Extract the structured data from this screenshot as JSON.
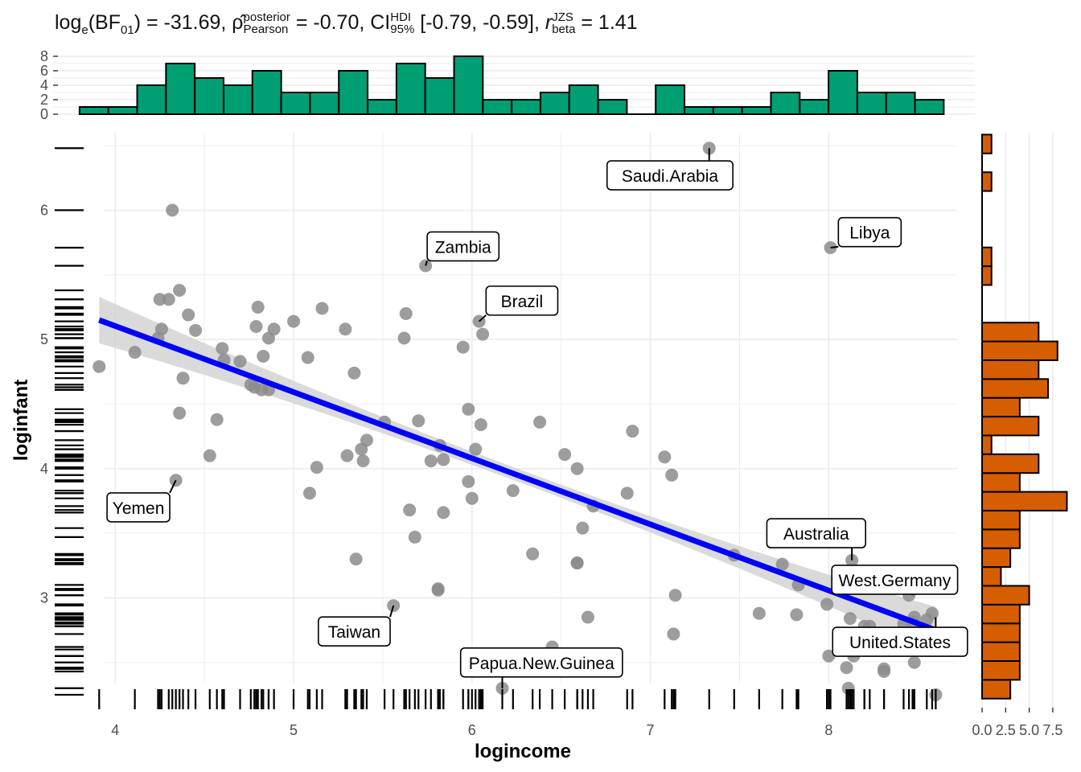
{
  "subtitle": {
    "bf_prefix": "log",
    "bf_sub_e": "e",
    "bf_arg_open": "(BF",
    "bf_arg_sub": "01",
    "bf_arg_close": ")",
    "bf_value": " = -31.69, ",
    "rho_symbol": "ρ̂",
    "rho_sup": "posterior",
    "rho_sub": "Pearson",
    "rho_value": " = -0.70, CI",
    "ci_sup": "HDI",
    "ci_sub": "95%",
    "ci_value": " [-0.79, -0.59], ",
    "r_symbol": "r",
    "r_sup": "JZS",
    "r_sub": "beta",
    "r_value": " = 1.41"
  },
  "colors": {
    "top_hist_fill": "#009E73",
    "right_hist_fill": "#D55E00",
    "regression_line": "#0000FF",
    "ribbon": "#D3D3D3",
    "points": "#8C8C8C",
    "grid": "#EBEBEB"
  },
  "chart_data": {
    "type": "scatter",
    "xlabel": "logincome",
    "ylabel": "loginfant",
    "xlim": [
      3.85,
      8.72
    ],
    "ylim": [
      2.15,
      6.6
    ],
    "x_ticks": [
      4,
      5,
      6,
      7,
      8
    ],
    "y_ticks": [
      3,
      4,
      5,
      6
    ],
    "grid": true,
    "regression": {
      "x0": 3.91,
      "y0": 5.15,
      "x1": 8.6,
      "y1": 2.75,
      "ribbon_half_width_ends": 0.18,
      "ribbon_half_width_center": 0.05
    },
    "points": [
      [
        3.91,
        4.79
      ],
      [
        4.11,
        4.9
      ],
      [
        4.24,
        5.01
      ],
      [
        4.26,
        5.08
      ],
      [
        4.25,
        5.31
      ],
      [
        4.3,
        5.31
      ],
      [
        4.32,
        6.0
      ],
      [
        4.34,
        3.91
      ],
      [
        4.36,
        4.43
      ],
      [
        4.36,
        5.38
      ],
      [
        4.38,
        4.7
      ],
      [
        4.41,
        5.19
      ],
      [
        4.45,
        5.07
      ],
      [
        4.53,
        4.1
      ],
      [
        4.57,
        4.38
      ],
      [
        4.6,
        4.93
      ],
      [
        4.61,
        4.84
      ],
      [
        4.7,
        4.83
      ],
      [
        4.76,
        4.65
      ],
      [
        4.78,
        4.63
      ],
      [
        4.79,
        5.1
      ],
      [
        4.8,
        5.25
      ],
      [
        4.82,
        4.61
      ],
      [
        4.83,
        4.87
      ],
      [
        4.86,
        4.61
      ],
      [
        4.86,
        5.01
      ],
      [
        4.89,
        5.08
      ],
      [
        5.0,
        5.14
      ],
      [
        5.08,
        4.86
      ],
      [
        5.09,
        3.81
      ],
      [
        5.13,
        4.01
      ],
      [
        5.16,
        5.24
      ],
      [
        5.29,
        5.08
      ],
      [
        5.3,
        4.1
      ],
      [
        5.34,
        4.74
      ],
      [
        5.35,
        3.3
      ],
      [
        5.38,
        4.15
      ],
      [
        5.39,
        4.06
      ],
      [
        5.41,
        4.22
      ],
      [
        5.51,
        4.36
      ],
      [
        5.56,
        2.94
      ],
      [
        5.62,
        5.01
      ],
      [
        5.63,
        5.2
      ],
      [
        5.65,
        3.68
      ],
      [
        5.68,
        3.47
      ],
      [
        5.7,
        4.37
      ],
      [
        5.74,
        5.57
      ],
      [
        5.77,
        4.06
      ],
      [
        5.81,
        3.06
      ],
      [
        5.81,
        3.07
      ],
      [
        5.82,
        4.18
      ],
      [
        5.84,
        4.07
      ],
      [
        5.84,
        3.66
      ],
      [
        5.95,
        4.94
      ],
      [
        5.98,
        4.46
      ],
      [
        5.98,
        3.9
      ],
      [
        6.0,
        3.77
      ],
      [
        6.02,
        4.15
      ],
      [
        6.04,
        5.14
      ],
      [
        6.05,
        4.34
      ],
      [
        6.06,
        5.04
      ],
      [
        6.23,
        3.83
      ],
      [
        6.17,
        2.3
      ],
      [
        6.34,
        3.34
      ],
      [
        6.38,
        4.36
      ],
      [
        6.45,
        2.62
      ],
      [
        6.52,
        4.11
      ],
      [
        6.59,
        3.27
      ],
      [
        6.59,
        3.27
      ],
      [
        6.59,
        4.0
      ],
      [
        6.62,
        3.54
      ],
      [
        6.68,
        3.71
      ],
      [
        6.87,
        3.81
      ],
      [
        6.9,
        4.29
      ],
      [
        7.08,
        4.09
      ],
      [
        7.12,
        3.95
      ],
      [
        7.13,
        2.72
      ],
      [
        7.14,
        3.02
      ],
      [
        7.33,
        6.48
      ],
      [
        7.47,
        3.33
      ],
      [
        7.61,
        2.88
      ],
      [
        7.74,
        3.26
      ],
      [
        7.82,
        2.87
      ],
      [
        7.83,
        3.1
      ],
      [
        8.0,
        2.55
      ],
      [
        8.01,
        5.71
      ],
      [
        8.1,
        2.46
      ],
      [
        8.11,
        2.3
      ],
      [
        8.12,
        2.84
      ],
      [
        8.13,
        3.29
      ],
      [
        8.14,
        2.55
      ],
      [
        8.2,
        2.78
      ],
      [
        8.2,
        2.6
      ],
      [
        8.23,
        2.78
      ],
      [
        8.31,
        2.45
      ],
      [
        8.31,
        2.43
      ],
      [
        8.42,
        2.8
      ],
      [
        8.45,
        3.02
      ],
      [
        8.47,
        2.81
      ],
      [
        8.48,
        2.85
      ],
      [
        8.55,
        2.83
      ],
      [
        8.58,
        2.88
      ],
      [
        8.6,
        2.25
      ],
      [
        8.48,
        2.5
      ],
      [
        7.99,
        2.95
      ],
      [
        6.65,
        2.85
      ]
    ],
    "labels": [
      {
        "text": "Saudi.Arabia",
        "x": 7.33,
        "y": 6.48,
        "lx": 7.11,
        "ly": 6.27
      },
      {
        "text": "Libya",
        "x": 8.01,
        "y": 5.71,
        "lx": 8.23,
        "ly": 5.83
      },
      {
        "text": "Zambia",
        "x": 5.74,
        "y": 5.57,
        "lx": 5.95,
        "ly": 5.72
      },
      {
        "text": "Brazil",
        "x": 6.04,
        "y": 5.14,
        "lx": 6.28,
        "ly": 5.3
      },
      {
        "text": "Yemen",
        "x": 4.34,
        "y": 3.91,
        "lx": 4.13,
        "ly": 3.7
      },
      {
        "text": "Australia",
        "x": 8.13,
        "y": 3.29,
        "lx": 7.93,
        "ly": 3.5
      },
      {
        "text": "West.Germany",
        "x": 8.47,
        "y": 3.02,
        "lx": 8.37,
        "ly": 3.14
      },
      {
        "text": "Taiwan",
        "x": 5.56,
        "y": 2.94,
        "lx": 5.34,
        "ly": 2.74
      },
      {
        "text": "United.States",
        "x": 8.6,
        "y": 2.85,
        "lx": 8.4,
        "ly": 2.66
      },
      {
        "text": "Papua.New.Guinea",
        "x": 6.17,
        "y": 2.3,
        "lx": 6.39,
        "ly": 2.5
      }
    ],
    "top_histogram": {
      "y_ticks": [
        0,
        2,
        4,
        6,
        8
      ],
      "ylim": [
        0,
        8
      ],
      "bin_start": 3.8,
      "bin_width": 0.1615,
      "counts": [
        1,
        1,
        4,
        7,
        5,
        4,
        6,
        3,
        3,
        6,
        2,
        7,
        5,
        8,
        2,
        2,
        3,
        4,
        2,
        0,
        4,
        1,
        1,
        1,
        3,
        2,
        6,
        3,
        3,
        2
      ]
    },
    "right_histogram": {
      "x_ticks": [
        "0.0",
        "2.5",
        "5.0",
        "7.5"
      ],
      "x_tick_values": [
        0,
        2.5,
        5.0,
        7.5
      ],
      "xlim": [
        0,
        9.3
      ],
      "bin_start": 2.22,
      "bin_width": 0.1455,
      "counts": [
        3,
        4,
        4,
        4,
        4,
        5,
        2,
        3,
        4,
        4,
        9,
        4,
        6,
        1,
        6,
        4,
        7,
        6,
        8,
        6,
        0,
        0,
        1,
        1,
        0,
        0,
        0,
        1,
        0,
        1
      ]
    }
  }
}
